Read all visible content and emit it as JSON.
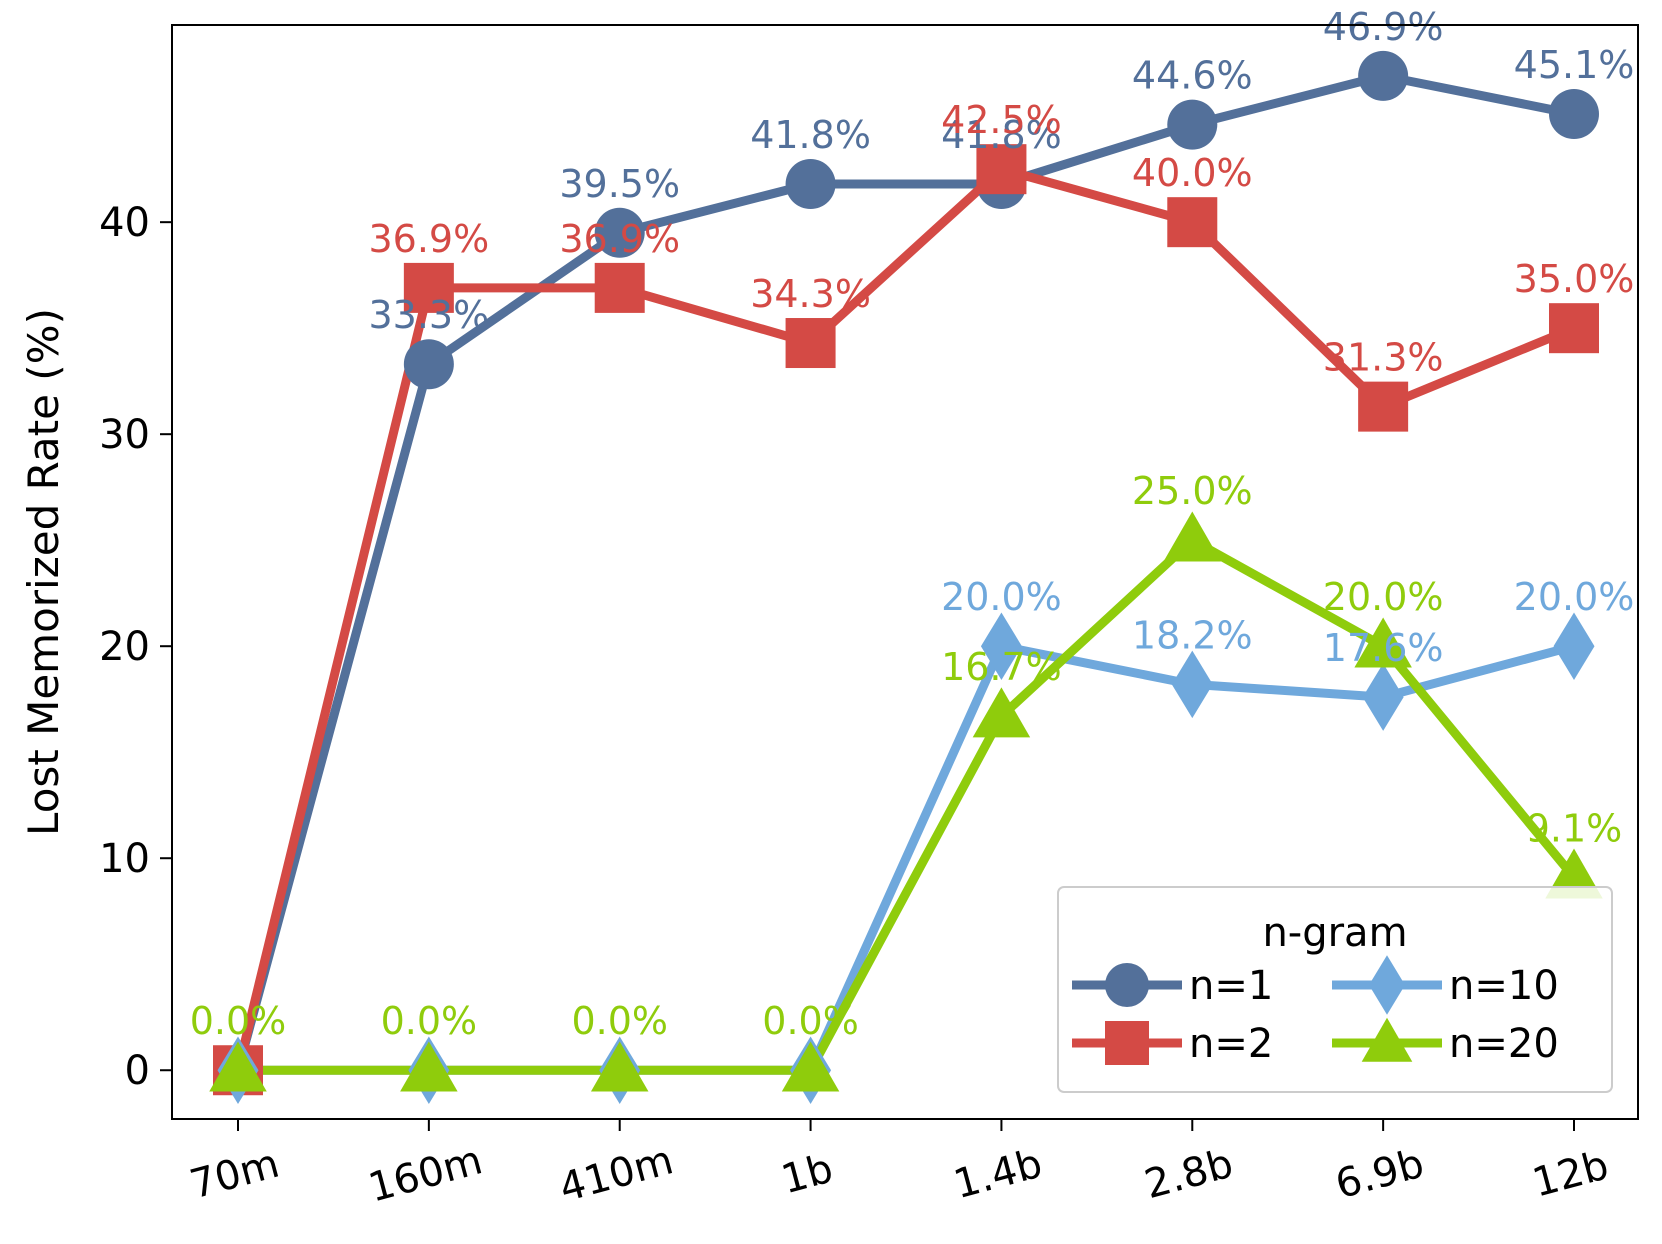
{
  "chart_data": {
    "type": "line",
    "title": "",
    "xlabel": "",
    "ylabel": "Lost Memorized Rate (%)",
    "categories": [
      "70m",
      "160m",
      "410m",
      "1b",
      "1.4b",
      "2.8b",
      "6.9b",
      "12b"
    ],
    "ylim": [
      -2.3,
      49.3
    ],
    "yticks": [
      0,
      10,
      20,
      30,
      40
    ],
    "grid": false,
    "legend": {
      "title": "n-gram",
      "placement": "lower-right",
      "columns": 2
    },
    "series": [
      {
        "name": "n=1",
        "color": "#53709a",
        "marker": "circle",
        "values": [
          0.0,
          33.3,
          39.5,
          41.8,
          41.8,
          44.6,
          46.9,
          45.1
        ],
        "labels": [
          "",
          "33.3%",
          "39.5%",
          "41.8%",
          "41.8%",
          "44.6%",
          "46.9%",
          "45.1%"
        ]
      },
      {
        "name": "n=2",
        "color": "#d44a45",
        "marker": "square",
        "values": [
          0.0,
          36.9,
          36.9,
          34.3,
          42.5,
          40.0,
          31.3,
          35.0
        ],
        "labels": [
          "",
          "36.9%",
          "36.9%",
          "34.3%",
          "42.5%",
          "40.0%",
          "31.3%",
          "35.0%"
        ]
      },
      {
        "name": "n=10",
        "color": "#6fa8dc",
        "marker": "diamond",
        "values": [
          0.0,
          0.0,
          0.0,
          0.0,
          20.0,
          18.2,
          17.6,
          20.0
        ],
        "labels": [
          "",
          "",
          "",
          "",
          "20.0%",
          "18.2%",
          "17.6%",
          "20.0%"
        ]
      },
      {
        "name": "n=20",
        "color": "#8fcc0c",
        "marker": "triangle",
        "values": [
          0.0,
          0.0,
          0.0,
          0.0,
          16.7,
          25.0,
          20.0,
          9.1
        ],
        "labels": [
          "0.0%",
          "0.0%",
          "0.0%",
          "0.0%",
          "16.7%",
          "25.0%",
          "20.0%",
          "9.1%"
        ]
      }
    ]
  }
}
